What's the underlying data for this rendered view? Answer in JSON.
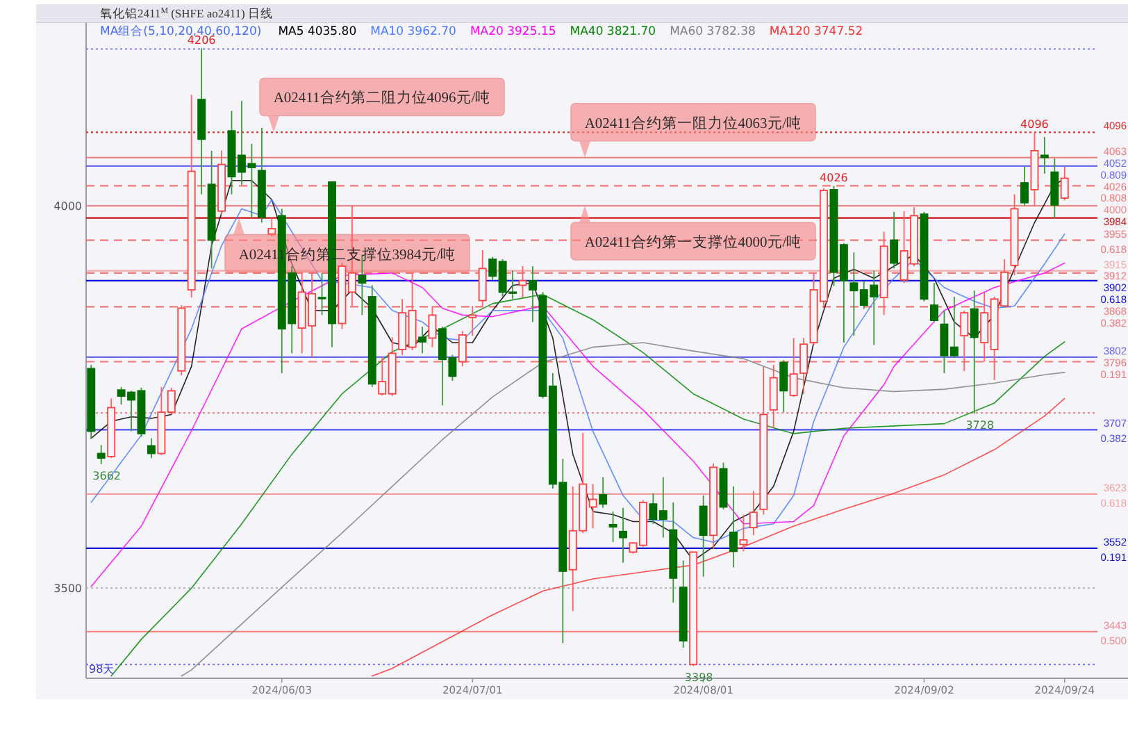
{
  "chart_data": {
    "type": "candlestick",
    "title": "氧化铝2411$^{M}$ (SHFE ao2411) 日线",
    "subtitle": "MA组合(5,10,20,40,60,120)",
    "categories": [
      null,
      null,
      null,
      null,
      null,
      null,
      null,
      null,
      null,
      null,
      null,
      null,
      null,
      null,
      null,
      null,
      null,
      null,
      null,
      "2024/06/03",
      null,
      null,
      null,
      null,
      null,
      null,
      null,
      null,
      null,
      null,
      null,
      null,
      null,
      null,
      null,
      null,
      null,
      null,
      "2024/07/01",
      null,
      null,
      null,
      null,
      null,
      null,
      null,
      null,
      null,
      null,
      null,
      null,
      null,
      null,
      null,
      null,
      null,
      null,
      null,
      null,
      null,
      null,
      "2024/08/01",
      null,
      null,
      null,
      null,
      null,
      null,
      null,
      null,
      null,
      null,
      null,
      null,
      null,
      null,
      null,
      null,
      null,
      null,
      null,
      null,
      null,
      "2024/09/02",
      null,
      null,
      null,
      null,
      null,
      null,
      null,
      null,
      null,
      null,
      null,
      null,
      null,
      "2024/09/24"
    ],
    "ohlc": [
      [
        3787,
        3792,
        3695,
        3705
      ],
      [
        3676,
        3687,
        3662,
        3670
      ],
      [
        3672,
        3748,
        3670,
        3736
      ],
      [
        3759,
        3763,
        3740,
        3751
      ],
      [
        3756,
        3758,
        3705,
        3746
      ],
      [
        3758,
        3762,
        3698,
        3702
      ],
      [
        3686,
        3696,
        3670,
        3676
      ],
      [
        3676,
        3763,
        3674,
        3730
      ],
      [
        3730,
        3762,
        3727,
        3758
      ],
      [
        3784,
        3870,
        3778,
        3866
      ],
      [
        3890,
        4145,
        3880,
        4045
      ],
      [
        4139,
        4206,
        4015,
        4087
      ],
      [
        4028,
        4072,
        3918,
        3955
      ],
      [
        3993,
        4072,
        3988,
        4054
      ],
      [
        4098,
        4124,
        4015,
        4038
      ],
      [
        4066,
        4137,
        4027,
        4044
      ],
      [
        4055,
        4081,
        3984,
        4050
      ],
      [
        4046,
        4102,
        3978,
        3985
      ],
      [
        3963,
        3984,
        3960,
        3970
      ],
      [
        3987,
        3996,
        3781,
        3839
      ],
      [
        3912,
        3921,
        3807,
        3846
      ],
      [
        3840,
        3912,
        3807,
        3887
      ],
      [
        3843,
        3912,
        3802,
        3885
      ],
      [
        3880,
        3912,
        3857,
        3879
      ],
      [
        4031,
        4032,
        3815,
        3846
      ],
      [
        3846,
        3925,
        3839,
        3921
      ],
      [
        3887,
        4000,
        3869,
        3912
      ],
      [
        3909,
        3936,
        3857,
        3899
      ],
      [
        3881,
        3896,
        3763,
        3767
      ],
      [
        3754,
        3802,
        3752,
        3770
      ],
      [
        3754,
        3828,
        3751,
        3807
      ],
      [
        3812,
        3878,
        3805,
        3860
      ],
      [
        3815,
        3912,
        3811,
        3863
      ],
      [
        3828,
        3842,
        3807,
        3822
      ],
      [
        3827,
        3869,
        3815,
        3857
      ],
      [
        3839,
        3842,
        3739,
        3799
      ],
      [
        3801,
        3805,
        3771,
        3777
      ],
      [
        3796,
        3836,
        3790,
        3831
      ],
      [
        3854,
        3869,
        3830,
        3857
      ],
      [
        3876,
        3942,
        3869,
        3918
      ],
      [
        3930,
        3933,
        3903,
        3908
      ],
      [
        3927,
        3930,
        3881,
        3887
      ],
      [
        3887,
        3915,
        3878,
        3886
      ],
      [
        3896,
        3921,
        3880,
        3902
      ],
      [
        3902,
        3921,
        3848,
        3890
      ],
      [
        3882,
        3887,
        3748,
        3751
      ],
      [
        3764,
        3781,
        3630,
        3636
      ],
      [
        3638,
        3669,
        3428,
        3522
      ],
      [
        3524,
        3633,
        3470,
        3575
      ],
      [
        3575,
        3703,
        3572,
        3636
      ],
      [
        3606,
        3636,
        3578,
        3616
      ],
      [
        3622,
        3645,
        3605,
        3610
      ],
      [
        3583,
        3600,
        3560,
        3580
      ],
      [
        3574,
        3605,
        3533,
        3566
      ],
      [
        3547,
        3560,
        3545,
        3559
      ],
      [
        3556,
        3615,
        3554,
        3612
      ],
      [
        3610,
        3624,
        3584,
        3590
      ],
      [
        3601,
        3645,
        3566,
        3590
      ],
      [
        3576,
        3612,
        3481,
        3513
      ],
      [
        3501,
        3536,
        3422,
        3431
      ],
      [
        3400,
        3548,
        3398,
        3547
      ],
      [
        3607,
        3621,
        3515,
        3569
      ],
      [
        3569,
        3663,
        3551,
        3658
      ],
      [
        3656,
        3664,
        3603,
        3606
      ],
      [
        3573,
        3633,
        3527,
        3548
      ],
      [
        3557,
        3596,
        3548,
        3563
      ],
      [
        3579,
        3627,
        3569,
        3599
      ],
      [
        3603,
        3790,
        3596,
        3727
      ],
      [
        3733,
        3792,
        3709,
        3775
      ],
      [
        3795,
        3798,
        3730,
        3758
      ],
      [
        3752,
        3827,
        3750,
        3780
      ],
      [
        3781,
        3827,
        3754,
        3819
      ],
      [
        3821,
        3912,
        3818,
        3890
      ],
      [
        3875,
        4023,
        3866,
        4020
      ],
      [
        4021,
        4026,
        3895,
        3913
      ],
      [
        3949,
        3951,
        3821,
        3902
      ],
      [
        3899,
        3939,
        3830,
        3889
      ],
      [
        3890,
        3902,
        3865,
        3870
      ],
      [
        3896,
        3915,
        3818,
        3881
      ],
      [
        3880,
        3966,
        3857,
        3947
      ],
      [
        3955,
        3992,
        3918,
        3925
      ],
      [
        3903,
        3993,
        3899,
        3941
      ],
      [
        3924,
        3998,
        3921,
        3987
      ],
      [
        3989,
        3992,
        3875,
        3878
      ],
      [
        3870,
        3899,
        3848,
        3850
      ],
      [
        3845,
        3863,
        3781,
        3804
      ],
      [
        3815,
        3881,
        3801,
        3804
      ],
      [
        3830,
        3863,
        3784,
        3860
      ],
      [
        3865,
        3889,
        3728,
        3828
      ],
      [
        3821,
        3887,
        3796,
        3860
      ],
      [
        3812,
        3881,
        3772,
        3878
      ],
      [
        3869,
        3930,
        3868,
        3913
      ],
      [
        3922,
        4015,
        3909,
        3996
      ],
      [
        4030,
        4051,
        4000,
        4004
      ],
      [
        4021,
        4096,
        4000,
        4072
      ],
      [
        4066,
        4090,
        4042,
        4063
      ],
      [
        4044,
        4062,
        3983,
        4001
      ],
      [
        4010,
        4051,
        4007,
        4036
      ]
    ],
    "series": [
      {
        "type": "line",
        "name": "MA5 4035.80",
        "color": "#000000",
        "values": [
          3696,
          null,
          3718,
          null,
          3724,
          null,
          3722,
          null,
          3727,
          null,
          3790,
          null,
          3948,
          null,
          4033,
          null,
          4033,
          null,
          4008,
          null,
          3924,
          null,
          3863,
          null,
          3863,
          null,
          3890,
          null,
          3866,
          null,
          3821,
          null,
          3815,
          null,
          3842,
          null,
          3821,
          null,
          3821,
          null,
          3863,
          null,
          3896,
          null,
          3899,
          null,
          3827,
          null,
          3675,
          null,
          3600,
          null,
          3596,
          null,
          3587,
          null,
          3587,
          null,
          3572,
          null,
          3536,
          null,
          3554,
          null,
          3587,
          null,
          3600,
          null,
          3633,
          null,
          3705,
          null,
          3821,
          null,
          3905,
          null,
          3917,
          null,
          3905,
          null,
          3921,
          null,
          3936,
          null,
          3905,
          null,
          3848,
          null,
          3827,
          null,
          3857,
          null,
          null,
          null,
          3978,
          null,
          4027,
          4036
        ]
      },
      {
        "type": "line",
        "name": "MA10 3962.70",
        "color": "#4a7cff",
        "values": [
          3612,
          null,
          null,
          null,
          null,
          3700,
          null,
          null,
          null,
          null,
          3839,
          null,
          null,
          3948,
          null,
          3996,
          null,
          3987,
          4008,
          null,
          3966,
          null,
          null,
          3902,
          null,
          3899,
          null,
          null,
          3893,
          null,
          3863,
          null,
          null,
          3848,
          null,
          3827,
          null,
          3824,
          null,
          null,
          3863,
          null,
          null,
          null,
          null,
          3863,
          null,
          3827,
          null,
          null,
          3705,
          null,
          null,
          3621,
          null,
          3590,
          null,
          null,
          3587,
          null,
          3566,
          null,
          3560,
          null,
          null,
          3578,
          null,
          null,
          3584,
          null,
          3621,
          null,
          3718,
          null,
          null,
          3815,
          null,
          null,
          3875,
          null,
          3905,
          null,
          3930,
          null,
          null,
          3893,
          null,
          null,
          3875,
          null,
          3866,
          null,
          3869,
          null,
          null,
          3924,
          null,
          3963
        ]
      },
      {
        "type": "line",
        "name": "MA20 3925.15",
        "color": "#ff00ff",
        "values": [
          3502,
          null,
          null,
          null,
          null,
          3581,
          null,
          null,
          null,
          null,
          3706,
          null,
          null,
          null,
          null,
          3839,
          null,
          null,
          null,
          null,
          3875,
          null,
          null,
          null,
          null,
          3909,
          null,
          null,
          null,
          null,
          3912,
          null,
          null,
          3893,
          null,
          3866,
          null,
          3857,
          null,
          null,
          3855,
          null,
          null,
          null,
          null,
          3869,
          null,
          null,
          null,
          null,
          3790,
          null,
          null,
          null,
          null,
          3733,
          null,
          null,
          null,
          null,
          3666,
          null,
          null,
          null,
          null,
          3584,
          null,
          null,
          null,
          null,
          3587,
          null,
          3608,
          null,
          null,
          3699,
          null,
          null,
          null,
          3766,
          3790,
          null,
          null,
          null,
          null,
          3863,
          null,
          null,
          null,
          null,
          3893,
          null,
          null,
          null,
          null,
          3912,
          null,
          3925
        ]
      },
      {
        "type": "line",
        "name": "MA40 3821.70",
        "color": "#008800",
        "values": [
          null,
          null,
          3385,
          null,
          null,
          3433,
          null,
          null,
          null,
          null,
          3500,
          null,
          null,
          null,
          null,
          3584,
          null,
          null,
          null,
          null,
          3675,
          null,
          null,
          null,
          null,
          3754,
          null,
          null,
          null,
          null,
          3809,
          null,
          null,
          null,
          null,
          3839,
          null,
          null,
          null,
          null,
          3872,
          null,
          null,
          null,
          null,
          3884,
          null,
          null,
          null,
          null,
          3851,
          null,
          null,
          null,
          null,
          3808,
          null,
          null,
          null,
          null,
          3754,
          null,
          null,
          null,
          null,
          3721,
          null,
          null,
          null,
          null,
          3702,
          null,
          null,
          null,
          null,
          3709,
          null,
          null,
          null,
          null,
          3712,
          null,
          null,
          null,
          null,
          3715,
          null,
          null,
          null,
          null,
          3742,
          null,
          null,
          null,
          null,
          3803,
          null,
          3822
        ]
      },
      {
        "type": "line",
        "name": "MA60 3782.38",
        "color": "#808080",
        "values": [
          null,
          null,
          null,
          null,
          null,
          null,
          null,
          null,
          null,
          3385,
          3393,
          null,
          null,
          null,
          null,
          3453,
          null,
          null,
          null,
          null,
          3513,
          null,
          null,
          null,
          null,
          3572,
          null,
          null,
          null,
          null,
          3633,
          null,
          null,
          null,
          null,
          3694,
          null,
          null,
          null,
          null,
          3750,
          null,
          null,
          null,
          null,
          3795,
          null,
          null,
          null,
          null,
          3815,
          null,
          null,
          null,
          null,
          3821,
          null,
          null,
          null,
          null,
          3810,
          null,
          null,
          null,
          null,
          3800,
          null,
          null,
          null,
          null,
          3775,
          null,
          null,
          null,
          null,
          3762,
          null,
          null,
          null,
          null,
          3757,
          null,
          null,
          null,
          null,
          3760,
          null,
          null,
          null,
          null,
          3768,
          null,
          null,
          null,
          null,
          3779,
          null,
          3782
        ]
      },
      {
        "type": "line",
        "name": "MA120 3747.52",
        "color": "#ff3030",
        "values": [
          null,
          null,
          null,
          null,
          null,
          null,
          null,
          null,
          null,
          null,
          null,
          null,
          null,
          null,
          null,
          null,
          null,
          null,
          null,
          null,
          null,
          null,
          null,
          null,
          null,
          null,
          null,
          null,
          3385,
          null,
          3395,
          null,
          null,
          null,
          null,
          3430,
          null,
          null,
          null,
          null,
          3465,
          null,
          null,
          null,
          null,
          3496,
          null,
          null,
          null,
          null,
          3512,
          null,
          null,
          null,
          null,
          3521,
          null,
          null,
          null,
          null,
          3530,
          null,
          null,
          null,
          null,
          3554,
          null,
          null,
          null,
          null,
          3581,
          null,
          null,
          null,
          null,
          3603,
          null,
          null,
          null,
          null,
          3624,
          null,
          null,
          null,
          null,
          3648,
          null,
          null,
          null,
          null,
          3681,
          null,
          null,
          null,
          null,
          3725,
          null,
          3748
        ]
      }
    ],
    "ylim": [
      3382,
      4240
    ],
    "yticks": [
      3500,
      4000
    ],
    "legend": "top",
    "ref_lines": [
      {
        "axis": "y",
        "value": 4205,
        "color": "#8080ff",
        "line_style": "dotted"
      },
      {
        "axis": "y",
        "value": 4096,
        "label": "4096",
        "color": "#e83030",
        "line_style": "dotted"
      },
      {
        "axis": "y",
        "value": 4063,
        "label": "4063",
        "color": "#f07878",
        "line_style": "solid"
      },
      {
        "axis": "y",
        "value": 4052,
        "label": "4052",
        "color": "#6a6af0",
        "line_style": "solid"
      },
      {
        "axis": "y",
        "value": 4026,
        "label": "4026",
        "color": "#f07878",
        "line_style": "dashed"
      },
      {
        "axis": "y",
        "value": 4000,
        "label": "4000",
        "color": "#f08888",
        "line_style": "solid"
      },
      {
        "axis": "y",
        "value": 3984,
        "label": "3984",
        "color": "#d01010",
        "line_style": "solid"
      },
      {
        "axis": "y",
        "value": 3955,
        "label": "3955",
        "color": "#f07878",
        "line_style": "dashed"
      },
      {
        "axis": "y",
        "value": 3915,
        "label": "3915",
        "color": "#f4a8a8",
        "line_style": "solid"
      },
      {
        "axis": "y",
        "value": 3912,
        "label": "3912",
        "color": "#f07878",
        "line_style": "dashed"
      },
      {
        "axis": "y",
        "value": 3902,
        "label": "3902",
        "color": "#1010e0",
        "line_style": "solid"
      },
      {
        "axis": "y",
        "value": 3868,
        "label": "3868",
        "color": "#f07878",
        "line_style": "dashed"
      },
      {
        "axis": "y",
        "value": 3802,
        "label": "3802",
        "color": "#6a6af0",
        "line_style": "solid"
      },
      {
        "axis": "y",
        "value": 3796,
        "label": "3796",
        "color": "#f07878",
        "line_style": "dashed"
      },
      {
        "axis": "y",
        "value": 3729,
        "color": "#f08888",
        "line_style": "dotted"
      },
      {
        "axis": "y",
        "value": 3707,
        "label": "3707",
        "color": "#5050f0",
        "line_style": "solid"
      },
      {
        "axis": "y",
        "value": 3623,
        "label": "3623",
        "color": "#f4a0a0",
        "line_style": "solid"
      },
      {
        "axis": "y",
        "value": 3552,
        "label": "3552",
        "color": "#1010d0",
        "line_style": "solid"
      },
      {
        "axis": "y",
        "value": 3500,
        "color": "#b8b8c4",
        "line_style": "dotted"
      },
      {
        "axis": "y",
        "value": 3443,
        "label": "3443",
        "color": "#f08888",
        "line_style": "solid"
      },
      {
        "axis": "y",
        "value": 3400,
        "color": "#8080ff",
        "line_style": "dotted"
      }
    ],
    "annotations": [
      {
        "text": "A02411合约第二阻力位4096元/吨",
        "y": 4096
      },
      {
        "text": "A02411合约第一阻力位4063元/吨",
        "y": 4063
      },
      {
        "text": "A02411合约第二支撑位3984元/吨",
        "y": 3984
      },
      {
        "text": "A02411合约第一支撑位4000元/吨",
        "y": 4000
      },
      {
        "text": "4206",
        "y": 4206
      },
      {
        "text": "4096",
        "y": 4096
      },
      {
        "text": "4026",
        "y": 4026
      },
      {
        "text": "3662",
        "y": 3662
      },
      {
        "text": "3398",
        "y": 3398
      },
      {
        "text": "3728",
        "y": 3728
      },
      "0.809",
      "0.808",
      "0.618",
      "0.618",
      "0.382",
      "0.191",
      "0.382",
      "0.618",
      "0.191",
      "0.500",
      "98天"
    ]
  }
}
